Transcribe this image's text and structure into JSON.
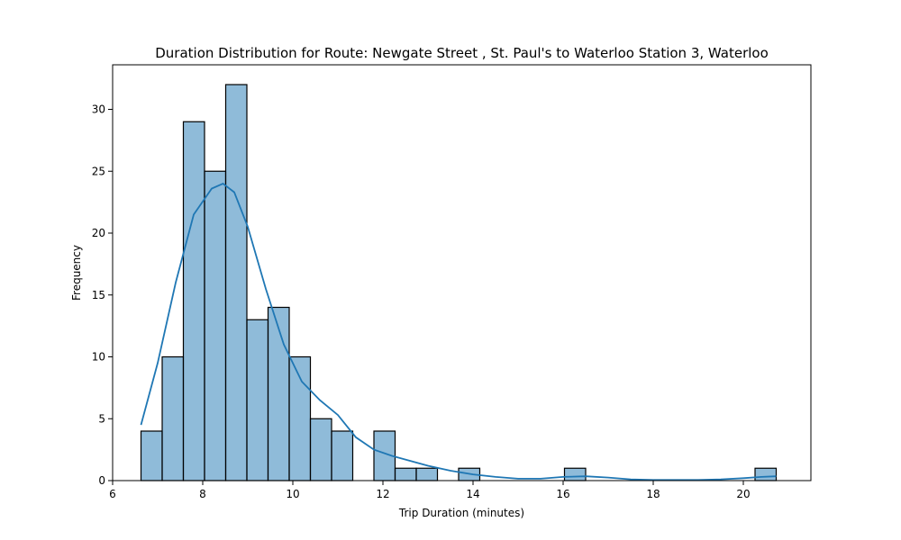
{
  "chart_data": {
    "type": "bar",
    "title": "Duration Distribution for Route: Newgate Street , St. Paul's to Waterloo Station 3, Waterloo",
    "xlabel": "Trip Duration (minutes)",
    "ylabel": "Frequency",
    "xlim": [
      6.0,
      21.5
    ],
    "ylim": [
      0,
      33.6
    ],
    "xticks": [
      6,
      8,
      10,
      12,
      14,
      16,
      18,
      20
    ],
    "yticks": [
      0,
      5,
      10,
      15,
      20,
      25,
      30
    ],
    "bin_edges": [
      6.63,
      7.1,
      7.57,
      8.04,
      8.51,
      8.98,
      9.45,
      9.92,
      10.39,
      10.86,
      11.33,
      11.8,
      12.27,
      12.74,
      13.21,
      13.68,
      14.15,
      14.62,
      15.09,
      15.56,
      16.03,
      16.5,
      16.97,
      17.44,
      17.91,
      18.38,
      18.85,
      19.32,
      19.79,
      20.26,
      20.73
    ],
    "counts": [
      4,
      10,
      29,
      25,
      32,
      13,
      14,
      10,
      5,
      4,
      0,
      4,
      1,
      1,
      0,
      1,
      0,
      0,
      0,
      0,
      1,
      0,
      0,
      0,
      0,
      0,
      0,
      0,
      0,
      1
    ],
    "kde": {
      "x": [
        6.63,
        7.0,
        7.4,
        7.8,
        8.2,
        8.45,
        8.7,
        9.0,
        9.4,
        9.8,
        10.2,
        10.6,
        11.0,
        11.4,
        11.8,
        12.2,
        12.6,
        13.0,
        13.5,
        14.0,
        14.5,
        15.0,
        15.5,
        16.0,
        16.5,
        17.0,
        17.5,
        18.0,
        18.5,
        19.0,
        19.5,
        20.0,
        20.4,
        20.73
      ],
      "y": [
        4.5,
        9.5,
        16.0,
        21.5,
        23.6,
        24.0,
        23.3,
        20.5,
        15.5,
        11.0,
        8.0,
        6.5,
        5.3,
        3.5,
        2.5,
        2.0,
        1.6,
        1.2,
        0.8,
        0.5,
        0.3,
        0.15,
        0.15,
        0.3,
        0.35,
        0.25,
        0.1,
        0.05,
        0.05,
        0.05,
        0.1,
        0.2,
        0.3,
        0.35
      ]
    },
    "color": "#1f77b4",
    "grid": false,
    "legend": "none"
  }
}
